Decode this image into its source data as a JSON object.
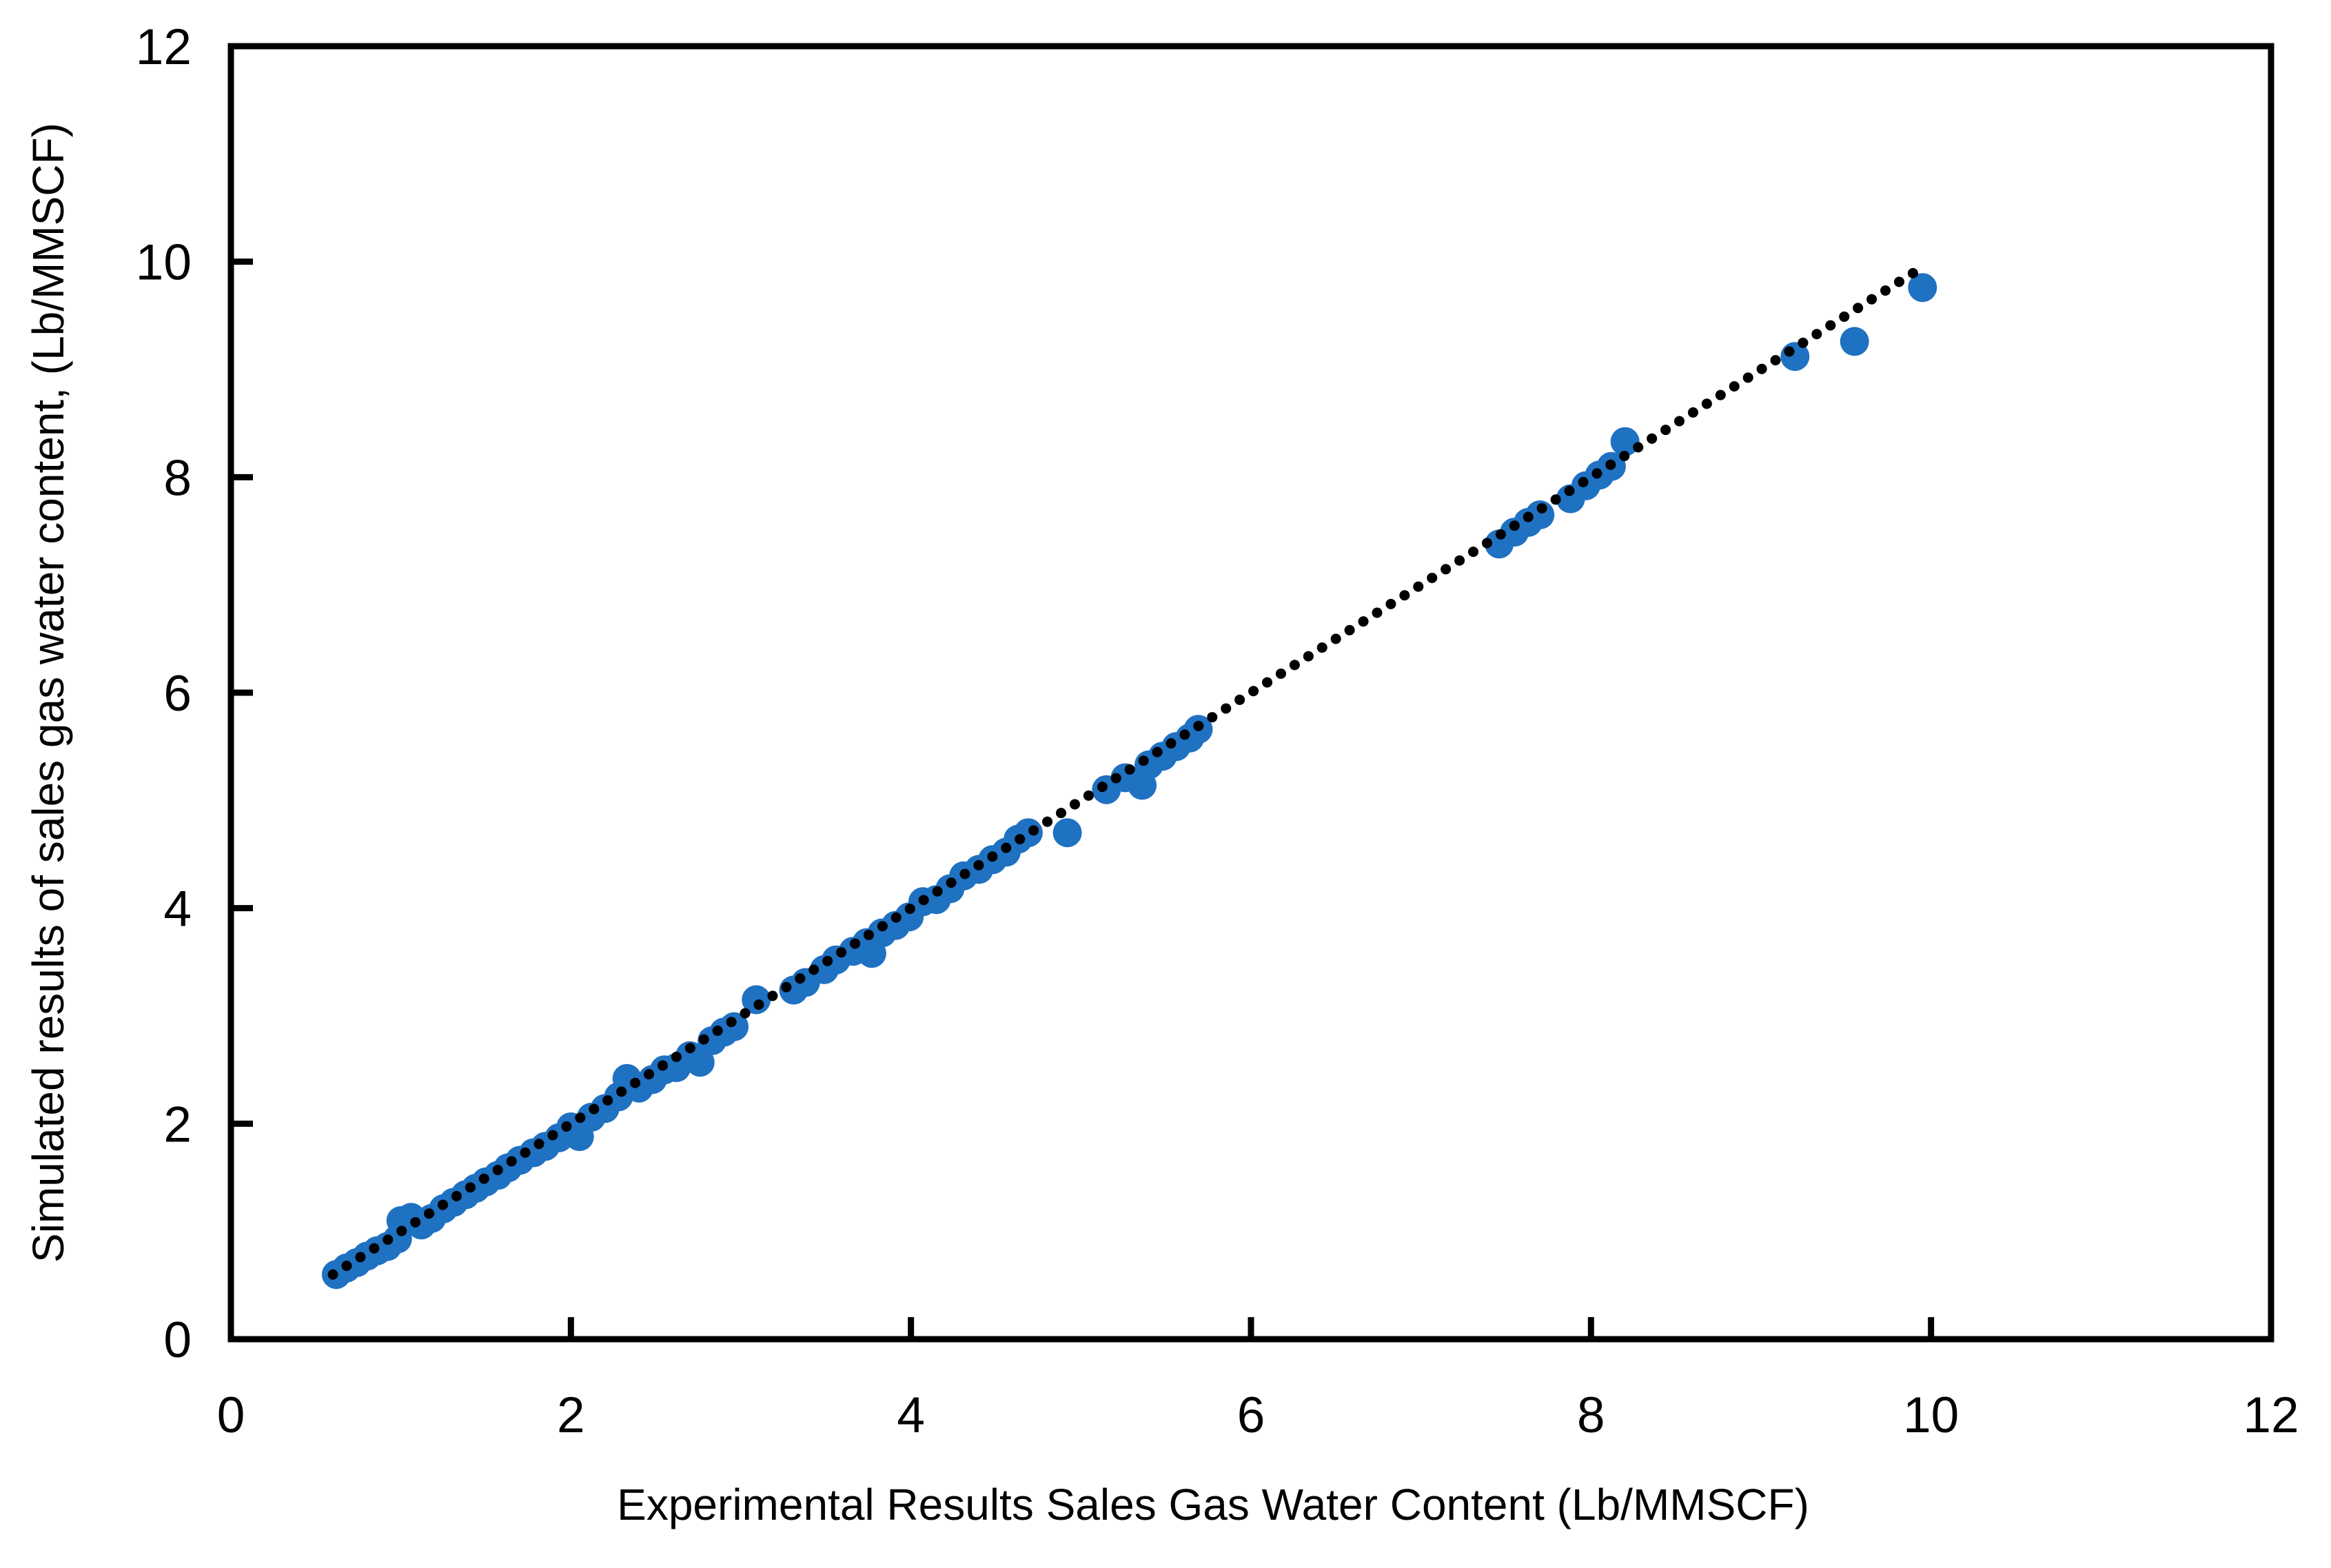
{
  "chart_data": {
    "type": "scatter",
    "title": "",
    "xlabel": "Experimental Results Sales Gas Water Content (Lb/MMSCF)",
    "ylabel": "Simulated results of sales gas water content, (Lb/MMSCF)",
    "xlim": [
      0,
      12
    ],
    "ylim": [
      0,
      12
    ],
    "xticks": [
      0,
      2,
      4,
      6,
      8,
      10,
      12
    ],
    "yticks": [
      0,
      2,
      4,
      6,
      8,
      10,
      12
    ],
    "grid": false,
    "legend_position": "none",
    "marker_color": "#1F71C2",
    "axis_color": "#000000",
    "background_color": "#FFFFFF",
    "trend_line": {
      "style": "dotted",
      "color": "#000000",
      "equation": "y = x",
      "from": [
        0.6,
        0.6
      ],
      "to": [
        9.95,
        9.95
      ]
    },
    "series": [
      {
        "name": "Simulated vs Experimental water content",
        "points": [
          [
            0.62,
            0.6
          ],
          [
            0.68,
            0.66
          ],
          [
            0.74,
            0.71
          ],
          [
            0.8,
            0.77
          ],
          [
            0.86,
            0.82
          ],
          [
            0.92,
            0.86
          ],
          [
            0.98,
            0.93
          ],
          [
            1.0,
            1.1
          ],
          [
            1.06,
            1.13
          ],
          [
            1.12,
            1.06
          ],
          [
            1.18,
            1.12
          ],
          [
            1.25,
            1.21
          ],
          [
            1.31,
            1.27
          ],
          [
            1.38,
            1.34
          ],
          [
            1.44,
            1.4
          ],
          [
            1.5,
            1.46
          ],
          [
            1.57,
            1.52
          ],
          [
            1.63,
            1.59
          ],
          [
            1.7,
            1.66
          ],
          [
            1.78,
            1.73
          ],
          [
            1.85,
            1.79
          ],
          [
            1.93,
            1.87
          ],
          [
            2.0,
            1.97
          ],
          [
            2.05,
            1.88
          ],
          [
            2.12,
            2.06
          ],
          [
            2.2,
            2.14
          ],
          [
            2.28,
            2.25
          ],
          [
            2.33,
            2.42
          ],
          [
            2.4,
            2.33
          ],
          [
            2.48,
            2.41
          ],
          [
            2.55,
            2.5
          ],
          [
            2.62,
            2.52
          ],
          [
            2.7,
            2.63
          ],
          [
            2.76,
            2.57
          ],
          [
            2.83,
            2.77
          ],
          [
            2.9,
            2.85
          ],
          [
            2.96,
            2.9
          ],
          [
            3.09,
            3.15
          ],
          [
            3.31,
            3.24
          ],
          [
            3.38,
            3.31
          ],
          [
            3.49,
            3.43
          ],
          [
            3.56,
            3.52
          ],
          [
            3.66,
            3.6
          ],
          [
            3.74,
            3.68
          ],
          [
            3.77,
            3.58
          ],
          [
            3.83,
            3.77
          ],
          [
            3.91,
            3.84
          ],
          [
            3.99,
            3.92
          ],
          [
            4.07,
            4.06
          ],
          [
            4.15,
            4.08
          ],
          [
            4.23,
            4.18
          ],
          [
            4.31,
            4.3
          ],
          [
            4.4,
            4.36
          ],
          [
            4.48,
            4.45
          ],
          [
            4.56,
            4.52
          ],
          [
            4.63,
            4.64
          ],
          [
            4.69,
            4.7
          ],
          [
            4.92,
            4.7
          ],
          [
            5.15,
            5.1
          ],
          [
            5.26,
            5.21
          ],
          [
            5.36,
            5.14
          ],
          [
            5.4,
            5.33
          ],
          [
            5.48,
            5.41
          ],
          [
            5.56,
            5.5
          ],
          [
            5.64,
            5.58
          ],
          [
            5.69,
            5.66
          ],
          [
            7.46,
            7.38
          ],
          [
            7.55,
            7.49
          ],
          [
            7.63,
            7.58
          ],
          [
            7.7,
            7.65
          ],
          [
            7.88,
            7.8
          ],
          [
            7.97,
            7.92
          ],
          [
            8.05,
            8.02
          ],
          [
            8.12,
            8.1
          ],
          [
            8.2,
            8.33
          ],
          [
            9.2,
            9.12
          ],
          [
            9.55,
            9.26
          ],
          [
            9.95,
            9.76
          ]
        ]
      }
    ]
  }
}
